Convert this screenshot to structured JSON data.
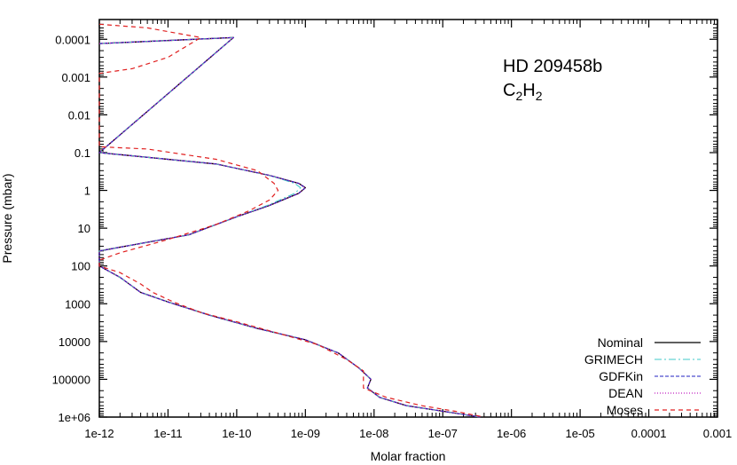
{
  "chart_data": {
    "type": "line",
    "annotation": {
      "line1": "HD 209458b",
      "species": "C",
      "sub1": "2",
      "mid": "H",
      "sub2": "2"
    },
    "xlabel": "Molar fraction",
    "ylabel": "Pressure (mbar)",
    "xscale": "log",
    "yscale": "log",
    "xlim": [
      1e-12,
      0.001
    ],
    "ylim": [
      1000000,
      3e-05
    ],
    "x_ticks": [
      "1e-12",
      "1e-11",
      "1e-10",
      "1e-09",
      "1e-08",
      "1e-07",
      "1e-06",
      "1e-05",
      "0.0001",
      "0.001"
    ],
    "y_ticks": [
      "0.0001",
      "0.001",
      "0.01",
      "0.1",
      "1",
      "10",
      "100",
      "1000",
      "10000",
      "100000",
      "1e+06"
    ],
    "legend_position": "bottom-right",
    "series": [
      {
        "name": "Nominal",
        "color": "#000000",
        "dash": "",
        "width": 1.3,
        "points": [
          [
            1e-12,
            0.00013
          ],
          [
            9e-11,
            9e-05
          ],
          [
            1e-12,
            0.1
          ],
          [
            5e-11,
            0.2
          ],
          [
            3e-10,
            0.4
          ],
          [
            8e-10,
            0.65
          ],
          [
            1e-09,
            0.85
          ],
          [
            8e-10,
            1.2
          ],
          [
            3e-10,
            2.5
          ],
          [
            1e-10,
            5
          ],
          [
            2e-11,
            15
          ],
          [
            1e-12,
            40
          ],
          [
            1e-12,
            100
          ],
          [
            2e-12,
            200
          ],
          [
            4e-12,
            500
          ],
          [
            1e-11,
            900
          ],
          [
            4e-11,
            2000
          ],
          [
            2e-10,
            4500
          ],
          [
            1e-09,
            9000
          ],
          [
            3e-09,
            20000
          ],
          [
            6e-09,
            50000
          ],
          [
            9e-09,
            100000
          ],
          [
            8e-09,
            170000
          ],
          [
            1.2e-08,
            300000
          ],
          [
            3e-08,
            500000
          ],
          [
            1e-07,
            700000
          ],
          [
            3.5e-07,
            1000000
          ]
        ]
      },
      {
        "name": "GRIMECH",
        "color": "#40c8c8",
        "dash": "8,3,2,3",
        "width": 1.1,
        "points": [
          [
            1e-12,
            0.00013
          ],
          [
            9e-11,
            9e-05
          ],
          [
            1e-12,
            0.1
          ],
          [
            5e-11,
            0.2
          ],
          [
            3e-10,
            0.4
          ],
          [
            7e-10,
            0.65
          ],
          [
            8.5e-10,
            0.85
          ],
          [
            7e-10,
            1.2
          ],
          [
            2.8e-10,
            2.5
          ],
          [
            1e-10,
            5
          ],
          [
            2e-11,
            15
          ],
          [
            1e-12,
            40
          ],
          [
            1e-12,
            100
          ],
          [
            2e-12,
            200
          ],
          [
            4e-12,
            500
          ],
          [
            1e-11,
            900
          ],
          [
            4e-11,
            2000
          ],
          [
            2e-10,
            4500
          ],
          [
            1e-09,
            9000
          ],
          [
            3e-09,
            20000
          ],
          [
            6e-09,
            50000
          ],
          [
            9e-09,
            100000
          ],
          [
            8e-09,
            170000
          ],
          [
            1.2e-08,
            300000
          ],
          [
            3e-08,
            500000
          ],
          [
            1e-07,
            700000
          ],
          [
            3.5e-07,
            1000000
          ]
        ]
      },
      {
        "name": "GDFKin",
        "color": "#2020c0",
        "dash": "4,2",
        "width": 1.1,
        "points": [
          [
            1e-12,
            0.00013
          ],
          [
            9e-11,
            9e-05
          ],
          [
            1e-12,
            0.1
          ],
          [
            5e-11,
            0.2
          ],
          [
            3e-10,
            0.4
          ],
          [
            8e-10,
            0.65
          ],
          [
            1e-09,
            0.85
          ],
          [
            8e-10,
            1.2
          ],
          [
            3e-10,
            2.5
          ],
          [
            1e-10,
            5
          ],
          [
            2e-11,
            15
          ],
          [
            1e-12,
            40
          ],
          [
            1e-12,
            100
          ],
          [
            2e-12,
            200
          ],
          [
            4e-12,
            500
          ],
          [
            1e-11,
            900
          ],
          [
            4e-11,
            2000
          ],
          [
            2e-10,
            4500
          ],
          [
            1e-09,
            9000
          ],
          [
            3e-09,
            20000
          ],
          [
            6e-09,
            50000
          ],
          [
            9e-09,
            100000
          ],
          [
            8e-09,
            170000
          ],
          [
            1.2e-08,
            300000
          ],
          [
            3e-08,
            500000
          ],
          [
            1e-07,
            700000
          ],
          [
            3.5e-07,
            1000000
          ]
        ]
      },
      {
        "name": "DEAN",
        "color": "#c020c0",
        "dash": "1,2",
        "width": 1.3,
        "points": [
          [
            1e-12,
            0.00013
          ],
          [
            9e-11,
            9e-05
          ],
          [
            1e-12,
            0.1
          ],
          [
            5e-11,
            0.2
          ],
          [
            3e-10,
            0.4
          ],
          [
            8e-10,
            0.65
          ],
          [
            1e-09,
            0.85
          ],
          [
            8e-10,
            1.2
          ],
          [
            3e-10,
            2.5
          ],
          [
            1e-10,
            5
          ],
          [
            2e-11,
            15
          ],
          [
            1e-12,
            40
          ],
          [
            1e-12,
            100
          ],
          [
            2e-12,
            200
          ],
          [
            4e-12,
            500
          ],
          [
            1e-11,
            900
          ],
          [
            4e-11,
            2000
          ],
          [
            2e-10,
            4500
          ],
          [
            1e-09,
            9000
          ],
          [
            3e-09,
            20000
          ],
          [
            6e-09,
            50000
          ],
          [
            9e-09,
            100000
          ],
          [
            8e-09,
            170000
          ],
          [
            1.2e-08,
            300000
          ],
          [
            3e-08,
            500000
          ],
          [
            1e-07,
            700000
          ],
          [
            3.5e-07,
            1000000
          ]
        ]
      },
      {
        "name": "Moses",
        "color": "#e02020",
        "dash": "5,4",
        "width": 1.2,
        "points": [
          [
            1e-12,
            4e-05
          ],
          [
            5e-12,
            5e-05
          ],
          [
            3e-11,
            9e-05
          ],
          [
            1e-11,
            0.0003
          ],
          [
            3e-12,
            0.0006
          ],
          [
            1e-12,
            0.0008
          ],
          [
            1e-12,
            0.07
          ],
          [
            5e-12,
            0.08
          ],
          [
            5e-11,
            0.15
          ],
          [
            2e-10,
            0.3
          ],
          [
            3.5e-10,
            0.65
          ],
          [
            4e-10,
            1
          ],
          [
            3e-10,
            1.8
          ],
          [
            1.5e-10,
            3.5
          ],
          [
            5e-11,
            8
          ],
          [
            1e-11,
            20
          ],
          [
            2e-12,
            45
          ],
          [
            1e-12,
            70
          ],
          [
            1e-12,
            100
          ],
          [
            2e-12,
            150
          ],
          [
            4e-12,
            300
          ],
          [
            6e-12,
            500
          ],
          [
            1.2e-11,
            900
          ],
          [
            3e-11,
            1700
          ],
          [
            1e-10,
            3000
          ],
          [
            4e-10,
            6000
          ],
          [
            1.5e-09,
            12000
          ],
          [
            4e-09,
            30000
          ],
          [
            7e-09,
            60000
          ],
          [
            7e-09,
            100000
          ],
          [
            7e-09,
            170000
          ],
          [
            1.5e-08,
            300000
          ],
          [
            5e-08,
            500000
          ],
          [
            1.5e-07,
            700000
          ],
          [
            4e-07,
            1000000
          ]
        ]
      }
    ]
  }
}
